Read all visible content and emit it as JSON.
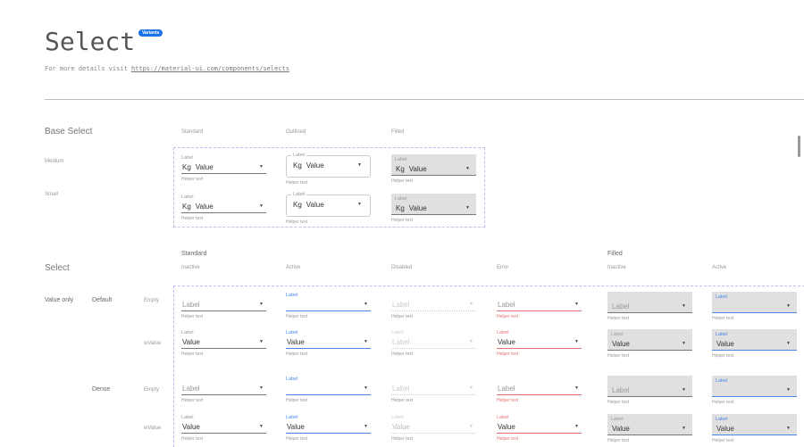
{
  "header": {
    "title": "Select",
    "badge": "Variants",
    "subtitle_prefix": "For more details visit",
    "link": "https://material-ui.com/components/selects"
  },
  "base": {
    "title": "Base Select",
    "columns": [
      "Standard",
      "Outlined",
      "Filled"
    ],
    "rows": [
      "Medium",
      "Small"
    ],
    "field": {
      "label": "Label",
      "adornment": "Kg",
      "value": "Value",
      "helper": "Helper text"
    }
  },
  "select": {
    "title": "Select",
    "groups": [
      "Standard",
      "Filled"
    ],
    "columns": [
      "Inactive",
      "Active",
      "Disabled",
      "Error",
      "Inactive",
      "Active"
    ],
    "category": "Value only",
    "densities": [
      "Default",
      "Dense"
    ],
    "rows": [
      "Empty",
      "wValue",
      "Empty",
      "wValue"
    ],
    "cells": [
      [
        {
          "label": "",
          "placeholder": "Label",
          "helper": "Helper text"
        },
        {
          "label": "Label",
          "placeholder": "",
          "helper": "Helper text"
        },
        {
          "label": "",
          "placeholder": "Label",
          "helper": "Helper text"
        },
        {
          "label": "",
          "placeholder": "Label",
          "helper": "Helper text"
        },
        {
          "label": "",
          "placeholder": "Label",
          "helper": "Helper text"
        },
        {
          "label": "Label",
          "placeholder": "",
          "helper": "Helper text"
        }
      ],
      [
        {
          "label": "Label",
          "value": "Value",
          "helper": "Helper text"
        },
        {
          "label": "Label",
          "value": "Value",
          "helper": "Helper text"
        },
        {
          "label": "Label",
          "placeholder": "Label",
          "helper": "Helper text"
        },
        {
          "label": "Label",
          "value": "Value",
          "helper": "Helper text"
        },
        {
          "label": "Label",
          "value": "Value",
          "helper": "Helper text"
        },
        {
          "label": "Label",
          "value": "Value",
          "helper": "Helper text"
        }
      ],
      [
        {
          "label": "",
          "placeholder": "Label",
          "helper": "Helper text"
        },
        {
          "label": "Label",
          "placeholder": "",
          "helper": "Helper text"
        },
        {
          "label": "",
          "placeholder": "Label",
          "helper": "Helper text"
        },
        {
          "label": "",
          "placeholder": "Label",
          "helper": "Helper text"
        },
        {
          "label": "",
          "placeholder": "Label",
          "helper": "Helper text"
        },
        {
          "label": "Label",
          "placeholder": "",
          "helper": "Helper text"
        }
      ],
      [
        {
          "label": "Label",
          "value": "Value",
          "helper": "Helper text"
        },
        {
          "label": "Label",
          "value": "Value",
          "helper": "Helper text"
        },
        {
          "label": "Label",
          "value": "Value",
          "helper": "Helper text"
        },
        {
          "label": "Label",
          "value": "Value",
          "helper": "Helper text"
        },
        {
          "label": "Label",
          "value": "Value",
          "helper": "Helper text"
        },
        {
          "label": "Label",
          "value": "Value",
          "helper": "Helper text"
        }
      ]
    ]
  },
  "icons": {
    "dropdown": "caret-down-icon"
  },
  "colors": {
    "accent": "#4a86e8",
    "error": "#e57373",
    "badge": "#1a73e8",
    "filled_bg": "#e0e0e0"
  }
}
